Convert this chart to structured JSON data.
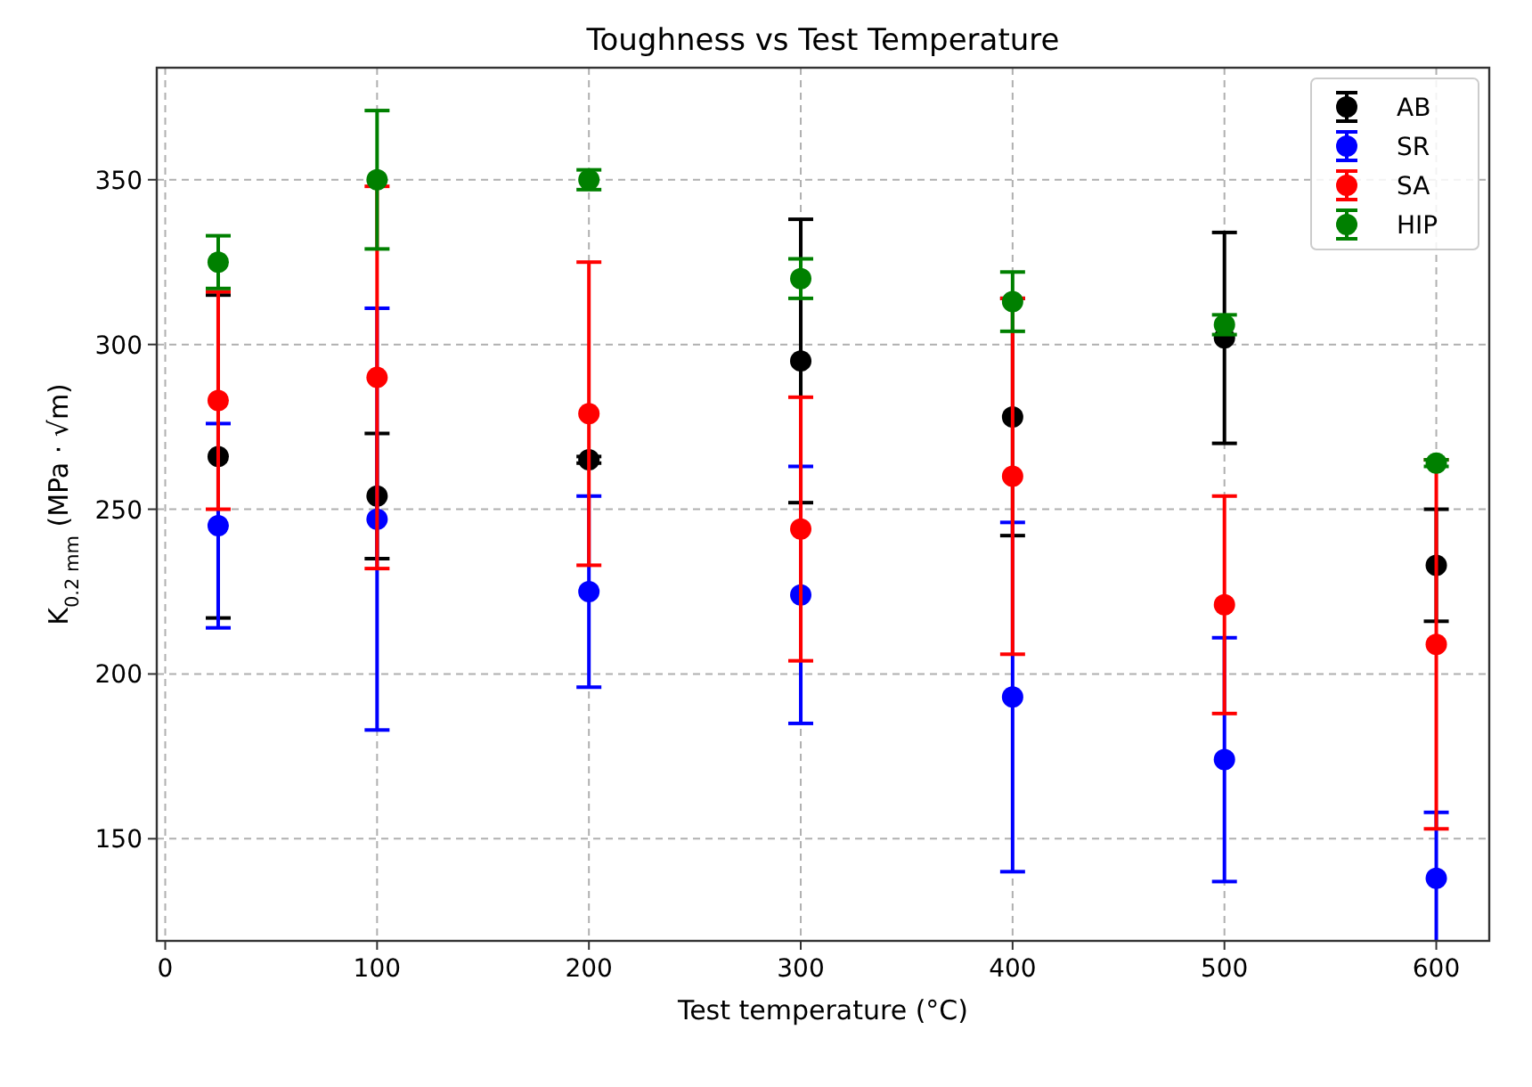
{
  "chart_data": {
    "type": "scatter",
    "title": "Toughness vs Test Temperature",
    "xlabel": "Test temperature (°C)",
    "ylabel": "K$_{0.2 mm}$ (MPa · √m)",
    "x": [
      25,
      100,
      200,
      300,
      400,
      500,
      600
    ],
    "series": [
      {
        "name": "AB",
        "color": "#000000",
        "values": [
          266,
          254,
          265,
          295,
          278,
          302,
          233
        ],
        "errors": [
          49,
          19,
          1,
          43,
          36,
          32,
          17
        ]
      },
      {
        "name": "SR",
        "color": "#0000ff",
        "values": [
          245,
          247,
          225,
          224,
          193,
          174,
          138
        ],
        "errors": [
          31,
          64,
          29,
          39,
          53,
          37,
          20
        ]
      },
      {
        "name": "SA",
        "color": "#ff0000",
        "values": [
          283,
          290,
          279,
          244,
          260,
          221,
          209
        ],
        "errors": [
          33,
          58,
          46,
          40,
          54,
          33,
          56
        ]
      },
      {
        "name": "HIP",
        "color": "#008000",
        "values": [
          325,
          350,
          350,
          320,
          313,
          306,
          264
        ],
        "errors": [
          8,
          21,
          3,
          6,
          9,
          3,
          1
        ]
      }
    ],
    "xlim": [
      -4,
      625
    ],
    "ylim": [
      119,
      384
    ],
    "xticks": [
      0,
      100,
      200,
      300,
      400,
      500,
      600
    ],
    "yticks": [
      150,
      200,
      250,
      300,
      350
    ],
    "grid": true,
    "legend": "top right",
    "marker": "circle"
  }
}
